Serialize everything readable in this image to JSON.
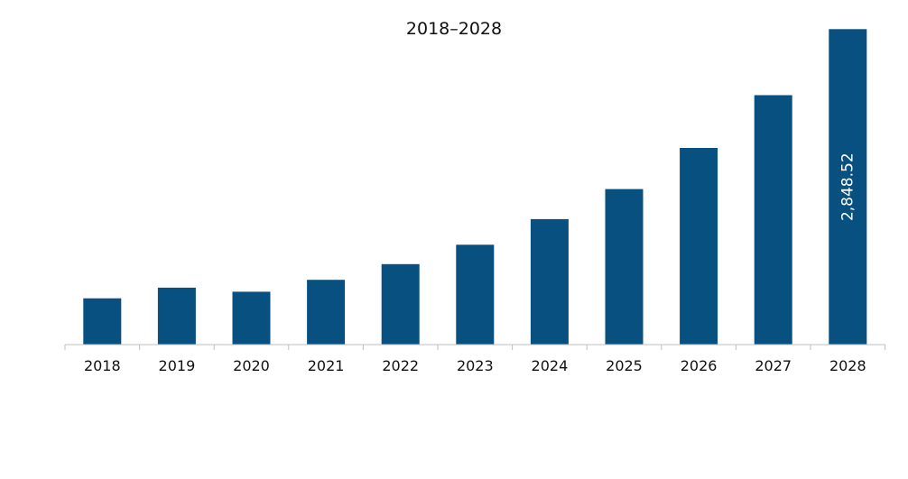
{
  "chart_data": {
    "type": "bar",
    "title": "2018–2028",
    "xlabel": "",
    "ylabel": "",
    "categories": [
      "2018",
      "2019",
      "2020",
      "2021",
      "2022",
      "2023",
      "2024",
      "2025",
      "2026",
      "2027",
      "2028"
    ],
    "values": [
      418,
      514,
      477,
      585,
      727,
      902,
      1133,
      1404,
      1776,
      2252,
      2848.52
    ],
    "data_labels": {
      "2028": "2,848.52"
    },
    "ylim": [
      0,
      2900
    ],
    "grid": false,
    "bar_color": "#07507f"
  }
}
